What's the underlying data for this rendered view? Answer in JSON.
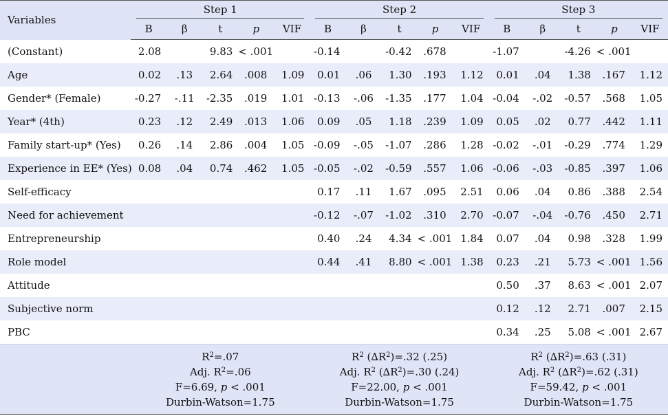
{
  "table": {
    "variables_header": "Variables",
    "steps": [
      {
        "title": "Step 1"
      },
      {
        "title": "Step 2"
      },
      {
        "title": "Step 3"
      }
    ],
    "sub_headers": [
      "B",
      "β",
      "t",
      "p",
      "VIF"
    ],
    "rows": [
      {
        "label": "(Constant)",
        "cells": [
          "2.08",
          "",
          "9.83",
          "< .001",
          "",
          "-0.14",
          "",
          "-0.42",
          ".678",
          "",
          "-1.07",
          "",
          "-4.26",
          "< .001",
          ""
        ]
      },
      {
        "label": "Age",
        "cells": [
          "0.02",
          ".13",
          "2.64",
          ".008",
          "1.09",
          "0.01",
          ".06",
          "1.30",
          ".193",
          "1.12",
          "0.01",
          ".04",
          "1.38",
          ".167",
          "1.12"
        ]
      },
      {
        "label": "Gender* (Female)",
        "cells": [
          "-0.27",
          "-.11",
          "-2.35",
          ".019",
          "1.01",
          "-0.13",
          "-.06",
          "-1.35",
          ".177",
          "1.04",
          "-0.04",
          "-.02",
          "-0.57",
          ".568",
          "1.05"
        ]
      },
      {
        "label": "Year* (4th)",
        "cells": [
          "0.23",
          ".12",
          "2.49",
          ".013",
          "1.06",
          "0.09",
          ".05",
          "1.18",
          ".239",
          "1.09",
          "0.05",
          ".02",
          "0.77",
          ".442",
          "1.11"
        ]
      },
      {
        "label": "Family start-up* (Yes)",
        "cells": [
          "0.26",
          ".14",
          "2.86",
          ".004",
          "1.05",
          "-0.09",
          "-.05",
          "-1.07",
          ".286",
          "1.28",
          "-0.02",
          "-.01",
          "-0.29",
          ".774",
          "1.29"
        ]
      },
      {
        "label": "Experience in EE* (Yes)",
        "cells": [
          "0.08",
          ".04",
          "0.74",
          ".462",
          "1.05",
          "-0.05",
          "-.02",
          "-0.59",
          ".557",
          "1.06",
          "-0.06",
          "-.03",
          "-0.85",
          ".397",
          "1.06"
        ]
      },
      {
        "label": "Self-efficacy",
        "cells": [
          "",
          "",
          "",
          "",
          "",
          "0.17",
          ".11",
          "1.67",
          ".095",
          "2.51",
          "0.06",
          ".04",
          "0.86",
          ".388",
          "2.54"
        ]
      },
      {
        "label": "Need for achievement",
        "cells": [
          "",
          "",
          "",
          "",
          "",
          "-0.12",
          "-.07",
          "-1.02",
          ".310",
          "2.70",
          "-0.07",
          "-.04",
          "-0.76",
          ".450",
          "2.71"
        ]
      },
      {
        "label": "Entrepreneurship",
        "cells": [
          "",
          "",
          "",
          "",
          "",
          "0.40",
          ".24",
          "4.34",
          "< .001",
          "1.84",
          "0.07",
          ".04",
          "0.98",
          ".328",
          "1.99"
        ]
      },
      {
        "label": "Role model",
        "cells": [
          "",
          "",
          "",
          "",
          "",
          "0.44",
          ".41",
          "8.80",
          "< .001",
          "1.38",
          "0.23",
          ".21",
          "5.73",
          "< .001",
          "1.56"
        ]
      },
      {
        "label": "Attitude",
        "cells": [
          "",
          "",
          "",
          "",
          "",
          "",
          "",
          "",
          "",
          "",
          "0.50",
          ".37",
          "8.63",
          "< .001",
          "2.07"
        ]
      },
      {
        "label": "Subjective norm",
        "cells": [
          "",
          "",
          "",
          "",
          "",
          "",
          "",
          "",
          "",
          "",
          "0.12",
          ".12",
          "2.71",
          ".007",
          "2.15"
        ]
      },
      {
        "label": "PBC",
        "cells": [
          "",
          "",
          "",
          "",
          "",
          "",
          "",
          "",
          "",
          "",
          "0.34",
          ".25",
          "5.08",
          "< .001",
          "2.67"
        ]
      }
    ],
    "footer": {
      "step1": {
        "r2": "=.07",
        "adj": "=.06",
        "f": "F=6.69, ",
        "p_text": " < .001",
        "dw": "Durbin-Watson=1.75"
      },
      "step2": {
        "r2": "=.32 (.25)",
        "adj": "=.30 (.24)",
        "f": "F=22.00, ",
        "p_text": " < .001",
        "dw": "Durbin-Watson=1.75"
      },
      "step3": {
        "r2": "=.63 (.31)",
        "adj": "=.62 (.31)",
        "f": "F=59.42, ",
        "p_text": " < .001",
        "dw": "Durbin-Watson=1.75"
      }
    },
    "colors": {
      "header_bg": "#dfe3f6",
      "alt_row_bg": "#e9ecf9",
      "footer_bg": "#e0e4f7"
    }
  }
}
